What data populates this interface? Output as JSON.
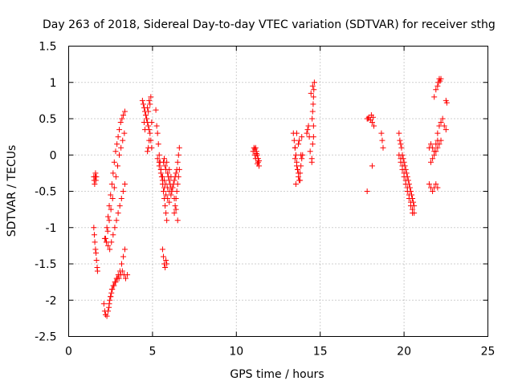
{
  "chart_data": {
    "type": "scatter",
    "title": "Day 263 of 2018, Sidereal Day-to-day VTEC variation (SDTVAR) for receiver sthg",
    "xlabel": "GPS time / hours",
    "ylabel": "SDTVAR / TECUs",
    "xlim": [
      0,
      25
    ],
    "ylim": [
      -2.5,
      1.5
    ],
    "xticks": [
      "0",
      "5",
      "10",
      "15",
      "20",
      "25"
    ],
    "yticks": [
      "-2.5",
      "-2",
      "-1.5",
      "-1",
      "-0.5",
      "0",
      "0.5",
      "1",
      "1.5"
    ],
    "grid": true,
    "marker": "+",
    "color": "#ff0000",
    "series": [
      {
        "name": "SDTVAR",
        "x": [
          1.5,
          1.52,
          1.55,
          1.58,
          1.6,
          1.62,
          1.65,
          1.5,
          1.53,
          1.56,
          1.6,
          1.63,
          1.66,
          1.7,
          1.72,
          2.2,
          2.28,
          2.35,
          2.42,
          2.5,
          2.58,
          2.65,
          2.72,
          2.8,
          2.88,
          2.95,
          3.02,
          3.1,
          3.18,
          3.26,
          3.35,
          2.25,
          2.33,
          2.42,
          2.52,
          2.62,
          2.72,
          2.82,
          2.92,
          3.02,
          3.12,
          3.22,
          3.32,
          2.1,
          2.15,
          2.2,
          2.28,
          2.35,
          2.42,
          2.5,
          2.58,
          2.66,
          2.76,
          2.86,
          2.96,
          3.06,
          3.16,
          3.26,
          3.35,
          2.4,
          2.45,
          2.5,
          2.55,
          2.6,
          2.7,
          2.8,
          2.9,
          3.0,
          3.1,
          3.2,
          3.3,
          3.4,
          3.5,
          2.15,
          2.25,
          2.35,
          2.45,
          2.55,
          2.65,
          2.75,
          2.85,
          2.95,
          3.05,
          3.15,
          3.25,
          3.35,
          4.4,
          4.45,
          4.5,
          4.55,
          4.6,
          4.65,
          4.7,
          4.75,
          4.8,
          4.85,
          4.9,
          4.95,
          4.5,
          4.6,
          4.7,
          4.8,
          4.9,
          4.55,
          4.65,
          4.75,
          4.85,
          4.95,
          4.7,
          4.75,
          4.8,
          5.2,
          5.25,
          5.3,
          5.35,
          5.4,
          5.45,
          5.5,
          5.55,
          5.6,
          5.65,
          5.7,
          5.75,
          5.8,
          5.85,
          5.3,
          5.4,
          5.5,
          5.6,
          5.7,
          5.8,
          5.9,
          6.0,
          5.4,
          5.5,
          5.6,
          5.7,
          5.8,
          5.9,
          6.0,
          6.1,
          5.65,
          5.7,
          5.75,
          5.8,
          5.85,
          5.9,
          5.95,
          6.0,
          6.05,
          6.1,
          6.15,
          6.2,
          6.25,
          6.3,
          6.35,
          6.4,
          6.45,
          6.5,
          6.55,
          6.6,
          6.0,
          6.1,
          6.2,
          6.3,
          6.4,
          6.5,
          6.3,
          6.35,
          6.4,
          6.45,
          6.5,
          6.55,
          6.6,
          5.6,
          5.65,
          5.7,
          5.75,
          5.8,
          5.85,
          11.0,
          11.05,
          11.1,
          11.15,
          11.2,
          11.25,
          11.3,
          11.35,
          11.1,
          11.2,
          11.3,
          11.15,
          11.25,
          11.35,
          13.4,
          13.45,
          13.5,
          13.55,
          13.6,
          13.65,
          13.7,
          13.75,
          13.8,
          13.85,
          13.9,
          13.95,
          13.5,
          13.6,
          13.7,
          13.8,
          13.9,
          13.55,
          13.65,
          13.75,
          13.85,
          13.5,
          13.6,
          13.7,
          14.2,
          14.25,
          14.3,
          14.35,
          14.4,
          14.5,
          14.52,
          14.55,
          14.58,
          14.6,
          14.62,
          14.65,
          14.5,
          14.55,
          14.6,
          14.45,
          14.55,
          14.6,
          17.8,
          17.9,
          18.0,
          18.1,
          18.2,
          17.85,
          18.05,
          18.15,
          17.8,
          18.1,
          18.2,
          18.1,
          18.65,
          18.7,
          18.75,
          19.7,
          19.8,
          19.9,
          20.0,
          20.1,
          20.2,
          20.3,
          20.4,
          20.5,
          20.6,
          19.75,
          19.85,
          19.95,
          20.05,
          20.15,
          20.25,
          20.35,
          20.45,
          20.55,
          19.7,
          19.8,
          19.9,
          20.0,
          20.1,
          20.2,
          20.3,
          20.4,
          20.5,
          19.8,
          19.9,
          20.0,
          20.1,
          20.2,
          20.3,
          20.4,
          20.5,
          20.6,
          21.5,
          21.6,
          21.7,
          21.8,
          21.9,
          22.0,
          21.6,
          21.7,
          21.8,
          21.9,
          22.0,
          22.1,
          22.2,
          21.5,
          21.6,
          21.7,
          21.8,
          21.9,
          22.0,
          21.8,
          21.9,
          22.0,
          22.05,
          22.1,
          22.15,
          22.2,
          22.0,
          22.1,
          22.2,
          22.3,
          22.4,
          22.5,
          22.5,
          22.55
        ],
        "y": [
          -0.3,
          -0.35,
          -0.4,
          -0.3,
          -0.25,
          -0.35,
          -0.3,
          -1.0,
          -1.1,
          -1.2,
          -1.3,
          -1.35,
          -1.45,
          -1.55,
          -1.6,
          -1.15,
          -1.0,
          -0.85,
          -0.7,
          -0.55,
          -0.4,
          -0.25,
          -0.1,
          0.05,
          0.15,
          0.25,
          0.35,
          0.45,
          0.5,
          0.55,
          0.6,
          -1.2,
          -1.05,
          -0.9,
          -0.75,
          -0.6,
          -0.45,
          -0.3,
          -0.15,
          0.0,
          0.1,
          0.2,
          0.3,
          -2.05,
          -2.15,
          -2.2,
          -2.22,
          -2.15,
          -2.05,
          -1.95,
          -1.85,
          -1.8,
          -1.75,
          -1.7,
          -1.65,
          -1.6,
          -1.5,
          -1.4,
          -1.3,
          -2.1,
          -2.0,
          -1.95,
          -1.9,
          -1.85,
          -1.8,
          -1.75,
          -1.7,
          -1.7,
          -1.65,
          -1.6,
          -1.65,
          -1.7,
          -1.65,
          -1.15,
          -1.2,
          -1.25,
          -1.3,
          -1.2,
          -1.1,
          -1.0,
          -0.9,
          -0.8,
          -0.7,
          -0.6,
          -0.5,
          -0.4,
          0.75,
          0.7,
          0.65,
          0.6,
          0.55,
          0.5,
          0.45,
          0.4,
          0.35,
          0.3,
          0.2,
          0.1,
          0.45,
          0.55,
          0.65,
          0.75,
          0.8,
          0.35,
          0.5,
          0.6,
          0.7,
          0.45,
          0.05,
          0.1,
          0.2,
          0.62,
          0.4,
          0.3,
          0.15,
          0.0,
          -0.1,
          -0.2,
          -0.3,
          -0.4,
          -0.5,
          -0.6,
          -0.7,
          -0.8,
          -0.9,
          -0.05,
          -0.15,
          -0.25,
          -0.35,
          -0.45,
          -0.55,
          -0.6,
          -0.65,
          -0.1,
          -0.2,
          -0.3,
          -0.35,
          -0.4,
          -0.45,
          -0.5,
          -0.55,
          -0.1,
          -0.05,
          -0.15,
          -0.2,
          -0.1,
          -0.25,
          -0.3,
          -0.35,
          -0.4,
          -0.45,
          -0.5,
          -0.45,
          -0.4,
          -0.35,
          -0.3,
          -0.25,
          -0.2,
          -0.1,
          0.0,
          0.1,
          -0.2,
          -0.3,
          -0.45,
          -0.6,
          -0.75,
          -0.9,
          -0.8,
          -0.7,
          -0.6,
          -0.5,
          -0.4,
          -0.3,
          -0.2,
          -1.3,
          -1.4,
          -1.5,
          -1.55,
          -1.45,
          -1.5,
          0.05,
          0.1,
          0.0,
          -0.05,
          0.05,
          0.0,
          -0.1,
          -0.15,
          0.08,
          0.02,
          -0.05,
          0.1,
          -0.12,
          -0.08,
          0.3,
          0.2,
          0.1,
          0.0,
          -0.1,
          -0.2,
          -0.3,
          -0.35,
          -0.25,
          -0.15,
          -0.05,
          0.0,
          -0.05,
          -0.15,
          -0.25,
          -0.35,
          0.25,
          -0.4,
          -0.2,
          0.2,
          0.0,
          0.1,
          0.3,
          0.15,
          0.3,
          0.35,
          0.4,
          0.25,
          0.05,
          -0.05,
          0.5,
          0.6,
          0.7,
          0.8,
          0.9,
          1.0,
          -0.1,
          0.15,
          0.25,
          0.85,
          0.95,
          0.4,
          0.5,
          0.52,
          0.48,
          0.45,
          0.4,
          0.5,
          0.55,
          0.52,
          -0.5,
          0.45,
          0.4,
          -0.15,
          0.3,
          0.2,
          0.1,
          0.3,
          0.15,
          0.0,
          -0.1,
          -0.2,
          -0.3,
          -0.4,
          -0.5,
          -0.6,
          -0.7,
          0.2,
          0.1,
          -0.05,
          -0.15,
          -0.25,
          -0.35,
          -0.45,
          -0.55,
          -0.65,
          0.0,
          -0.1,
          -0.2,
          -0.3,
          -0.4,
          -0.5,
          -0.6,
          -0.7,
          -0.8,
          -0.05,
          -0.15,
          -0.25,
          -0.35,
          -0.45,
          -0.55,
          -0.65,
          -0.75,
          -0.8,
          0.1,
          0.15,
          0.1,
          0.05,
          0.15,
          0.2,
          -0.1,
          -0.05,
          0.0,
          0.05,
          0.1,
          0.15,
          0.2,
          -0.4,
          -0.45,
          -0.5,
          -0.45,
          -0.4,
          -0.45,
          0.8,
          0.9,
          0.95,
          1.0,
          1.05,
          1.02,
          1.05,
          0.3,
          0.4,
          0.45,
          0.5,
          0.4,
          0.35,
          0.75,
          0.72
        ]
      }
    ]
  }
}
